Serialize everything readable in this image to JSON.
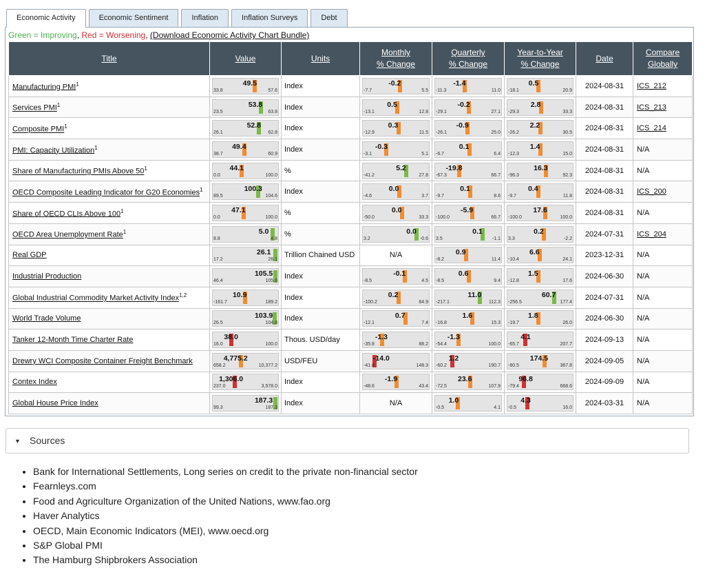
{
  "tabs": [
    "Economic Activity",
    "Economic Sentiment",
    "Inflation",
    "Inflation Surveys",
    "Debt"
  ],
  "legend": {
    "green": "Green = Improving",
    "sep": ", ",
    "red": "Red = Worsening",
    "sep2": ", ",
    "link": "(Download Economic Activity Chart Bundle)"
  },
  "headers": {
    "title": "Title",
    "value": "Value",
    "units": "Units",
    "monthly_1": "Monthly",
    "monthly_2": "% Change",
    "quarterly_1": "Quarterly",
    "quarterly_2": "% Change",
    "yty_1": "Year-to-Year",
    "yty_2": "% Change",
    "date": "Date",
    "compare_1": "Compare",
    "compare_2": "Globally"
  },
  "colors": {
    "improving": "#7cb84a",
    "worsening": "#cc3333",
    "neutral": "#f08c32"
  },
  "rows": [
    {
      "title": "Manufacturing PMI",
      "sup": "1",
      "units": "Index",
      "date": "2024-08-31",
      "compare": "ICS_212",
      "value": {
        "v": "49.5",
        "lo": "33.8",
        "hi": "57.6",
        "c": "neutral"
      },
      "monthly": {
        "v": "-0.2",
        "lo": "-7.7",
        "hi": "5.5",
        "c": "neutral"
      },
      "quarterly": {
        "v": "-1.4",
        "lo": "-11.3",
        "hi": "11.0",
        "c": "neutral"
      },
      "yty": {
        "v": "0.5",
        "lo": "-18.1",
        "hi": "20.9",
        "c": "neutral"
      }
    },
    {
      "title": "Services PMI",
      "sup": "1",
      "units": "Index",
      "date": "2024-08-31",
      "compare": "ICS_213",
      "value": {
        "v": "53.8",
        "lo": "23.5",
        "hi": "63.8",
        "c": "improving"
      },
      "monthly": {
        "v": "0.5",
        "lo": "-13.1",
        "hi": "12.8",
        "c": "neutral"
      },
      "quarterly": {
        "v": "-0.2",
        "lo": "-29.1",
        "hi": "27.1",
        "c": "neutral"
      },
      "yty": {
        "v": "2.8",
        "lo": "-29.3",
        "hi": "33.3",
        "c": "neutral"
      }
    },
    {
      "title": "Composite PMI",
      "sup": "1",
      "units": "Index",
      "date": "2024-08-31",
      "compare": "ICS_214",
      "value": {
        "v": "52.8",
        "lo": "26.1",
        "hi": "62.8",
        "c": "improving"
      },
      "monthly": {
        "v": "0.3",
        "lo": "-12.9",
        "hi": "11.5",
        "c": "neutral"
      },
      "quarterly": {
        "v": "-0.9",
        "lo": "-26.1",
        "hi": "25.0",
        "c": "neutral"
      },
      "yty": {
        "v": "2.2",
        "lo": "-26.2",
        "hi": "30.5",
        "c": "neutral"
      }
    },
    {
      "title": "PMI: Capacity Utilization",
      "sup": "1",
      "units": "Index",
      "date": "2024-08-31",
      "compare": "N/A",
      "value": {
        "v": "49.4",
        "lo": "38.7",
        "hi": "60.9",
        "c": "neutral"
      },
      "monthly": {
        "v": "-0.3",
        "lo": "-3.1",
        "hi": "5.1",
        "c": "neutral"
      },
      "quarterly": {
        "v": "0.1",
        "lo": "-6.7",
        "hi": "6.4",
        "c": "neutral"
      },
      "yty": {
        "v": "1.4",
        "lo": "-12.3",
        "hi": "15.0",
        "c": "neutral"
      }
    },
    {
      "title": "Share of Manufacturing PMIs Above 50",
      "sup": "1",
      "units": "%",
      "date": "2024-08-31",
      "compare": "N/A",
      "value": {
        "v": "44.1",
        "lo": "0.0",
        "hi": "100.0",
        "c": "neutral"
      },
      "monthly": {
        "v": "5.2",
        "lo": "-41.2",
        "hi": "27.8",
        "c": "improving"
      },
      "quarterly": {
        "v": "-19.8",
        "lo": "-67.3",
        "hi": "66.7",
        "c": "neutral"
      },
      "yty": {
        "v": "16.3",
        "lo": "-96.3",
        "hi": "92.3",
        "c": "neutral"
      }
    },
    {
      "title": "OECD Composite Leading Indicator for G20 Economies",
      "sup": "1",
      "units": "Index",
      "date": "2024-08-31",
      "compare": "ICS_200",
      "value": {
        "v": "100.3",
        "lo": "89.5",
        "hi": "104.6",
        "c": "improving"
      },
      "monthly": {
        "v": "0.0",
        "lo": "-4.6",
        "hi": "3.7",
        "c": "neutral"
      },
      "quarterly": {
        "v": "0.1",
        "lo": "-9.7",
        "hi": "8.6",
        "c": "neutral"
      },
      "yty": {
        "v": "0.4",
        "lo": "-9.7",
        "hi": "11.8",
        "c": "neutral"
      }
    },
    {
      "title": "Share of OECD CLIs Above 100",
      "sup": "1",
      "units": "%",
      "date": "2024-08-31",
      "compare": "N/A",
      "value": {
        "v": "47.1",
        "lo": "0.0",
        "hi": "100.0",
        "c": "neutral"
      },
      "monthly": {
        "v": "0.0",
        "lo": "-50.0",
        "hi": "33.3",
        "c": "neutral"
      },
      "quarterly": {
        "v": "-5.9",
        "lo": "-100.0",
        "hi": "66.7",
        "c": "neutral"
      },
      "yty": {
        "v": "17.6",
        "lo": "-100.0",
        "hi": "100.0",
        "c": "neutral"
      }
    },
    {
      "title": "OECD Area Unemployment Rate",
      "sup": "1",
      "units": "%",
      "date": "2024-07-31",
      "compare": "ICS_204",
      "value": {
        "v": "5.0",
        "lo": "8.8",
        "hi": "4.8",
        "c": "improving"
      },
      "monthly": {
        "v": "0.0",
        "lo": "3.2",
        "hi": "-0.6",
        "c": "improving"
      },
      "quarterly": {
        "v": "0.1",
        "lo": "3.5",
        "hi": "-1.1",
        "c": "improving"
      },
      "yty": {
        "v": "0.2",
        "lo": "3.3",
        "hi": "-2.2",
        "c": "neutral"
      }
    },
    {
      "title": "Real GDP",
      "sup": "",
      "units": "Trillion Chained USD",
      "date": "2023-12-31",
      "compare": "N/A",
      "value": {
        "v": "26.1",
        "lo": "17.2",
        "hi": "26.1",
        "c": "improving"
      },
      "monthly": null,
      "quarterly": {
        "v": "0.9",
        "lo": "-8.2",
        "hi": "11.4",
        "c": "neutral"
      },
      "yty": {
        "v": "6.6",
        "lo": "-10.4",
        "hi": "24.1",
        "c": "neutral"
      }
    },
    {
      "title": "Industrial Production",
      "sup": "",
      "units": "Index",
      "date": "2024-06-30",
      "compare": "N/A",
      "value": {
        "v": "105.5",
        "lo": "46.4",
        "hi": "105.6",
        "c": "improving"
      },
      "monthly": {
        "v": "-0.1",
        "lo": "-8.5",
        "hi": "4.5",
        "c": "neutral"
      },
      "quarterly": {
        "v": "0.6",
        "lo": "-8.5",
        "hi": "9.4",
        "c": "neutral"
      },
      "yty": {
        "v": "1.5",
        "lo": "-12.8",
        "hi": "17.6",
        "c": "neutral"
      }
    },
    {
      "title": "Global Industrial Commodity Market Activity Index",
      "sup": "1,2",
      "units": "Index",
      "date": "2024-07-31",
      "compare": "N/A",
      "value": {
        "v": "10.9",
        "lo": "-161.7",
        "hi": "189.2",
        "c": "neutral"
      },
      "monthly": {
        "v": "0.2",
        "lo": "-100.2",
        "hi": "84.9",
        "c": "neutral"
      },
      "quarterly": {
        "v": "11.0",
        "lo": "-217.1",
        "hi": "112.3",
        "c": "improving"
      },
      "yty": {
        "v": "60.7",
        "lo": "-256.5",
        "hi": "177.4",
        "c": "improving"
      }
    },
    {
      "title": "World Trade Volume",
      "sup": "",
      "units": "Index",
      "date": "2024-06-30",
      "compare": "N/A",
      "value": {
        "v": "103.9",
        "lo": "26.5",
        "hi": "104.8",
        "c": "improving"
      },
      "monthly": {
        "v": "0.7",
        "lo": "-12.1",
        "hi": "7.4",
        "c": "neutral"
      },
      "quarterly": {
        "v": "1.6",
        "lo": "-16.8",
        "hi": "15.3",
        "c": "neutral"
      },
      "yty": {
        "v": "1.8",
        "lo": "-19.7",
        "hi": "26.0",
        "c": "neutral"
      }
    },
    {
      "title": "Tanker 12-Month Time Charter Rate",
      "sup": "",
      "units": "Thous. USD/day",
      "date": "2024-09-13",
      "compare": "N/A",
      "value": {
        "v": "38.0",
        "lo": "16.0",
        "hi": "100.0",
        "c": "worsening"
      },
      "monthly": {
        "v": "-1.3",
        "lo": "-35.8",
        "hi": "88.2",
        "c": "neutral"
      },
      "quarterly": {
        "v": "-1.3",
        "lo": "-54.4",
        "hi": "100.0",
        "c": "neutral"
      },
      "yty": {
        "v": "4.1",
        "lo": "-65.7",
        "hi": "207.7",
        "c": "worsening"
      }
    },
    {
      "title": "Drewry WCI Composite Container Freight Benchmark",
      "sup": "",
      "units": "USD/FEU",
      "date": "2024-09-05",
      "compare": "N/A",
      "value": {
        "v": "4,775.2",
        "lo": "658.2",
        "hi": "10,377.2",
        "c": "neutral"
      },
      "monthly": {
        "v": "-14.0",
        "lo": "-41.8",
        "hi": "148.3",
        "c": "worsening"
      },
      "quarterly": {
        "v": "1.2",
        "lo": "-60.2",
        "hi": "190.7",
        "c": "worsening"
      },
      "yty": {
        "v": "174.5",
        "lo": "-80.5",
        "hi": "367.8",
        "c": "neutral"
      }
    },
    {
      "title": "Contex Index",
      "sup": "",
      "units": "Index",
      "date": "2024-09-09",
      "compare": "N/A",
      "value": {
        "v": "1,306.0",
        "lo": "237.0",
        "hi": "3,578.0",
        "c": "worsening"
      },
      "monthly": {
        "v": "-1.9",
        "lo": "-48.6",
        "hi": "43.4",
        "c": "neutral"
      },
      "quarterly": {
        "v": "23.6",
        "lo": "-72.5",
        "hi": "107.9",
        "c": "neutral"
      },
      "yty": {
        "v": "96.8",
        "lo": "-79.4",
        "hi": "668.6",
        "c": "worsening"
      }
    },
    {
      "title": "Global House Price Index",
      "sup": "",
      "units": "Index",
      "date": "2024-03-31",
      "compare": "N/A",
      "value": {
        "v": "187.3",
        "lo": "99.3",
        "hi": "187.3",
        "c": "improving"
      },
      "monthly": null,
      "quarterly": {
        "v": "1.0",
        "lo": "-0.5",
        "hi": "4.1",
        "c": "neutral"
      },
      "yty": {
        "v": "4.3",
        "lo": "-0.5",
        "hi": "16.0",
        "c": "worsening"
      }
    }
  ],
  "na_label": "N/A",
  "sources": {
    "label": "Sources",
    "items": [
      "Bank for International Settlements, Long series on credit to the private non-financial sector",
      "Fearnleys.com",
      "Food and Agriculture Organization of the United Nations, www.fao.org",
      "Haver Analytics",
      "OECD, Main Economic Indicators (MEI), www.oecd.org",
      "S&P Global PMI",
      "The Hamburg Shipbrokers Association"
    ]
  }
}
